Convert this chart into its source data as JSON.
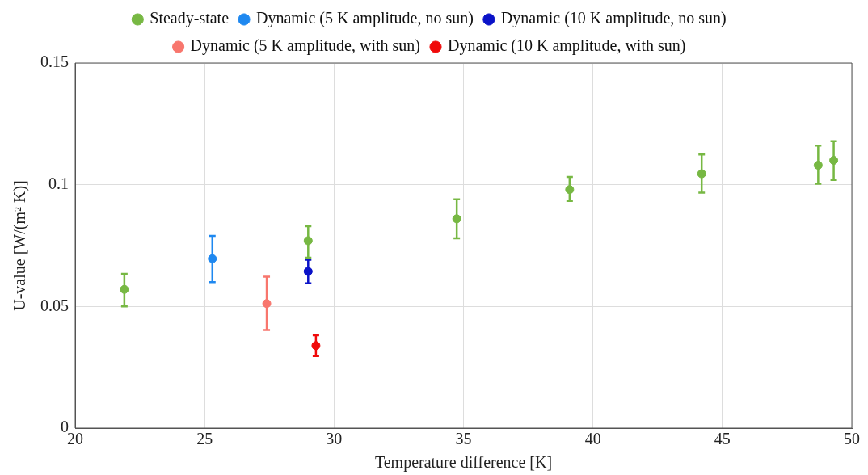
{
  "chart_data": {
    "type": "scatter",
    "xlabel": "Temperature difference [K]",
    "ylabel": "U-value [W/(m² K)]",
    "xlim": [
      20,
      50
    ],
    "xticks": [
      20,
      25,
      30,
      35,
      40,
      45,
      50
    ],
    "ylim": [
      0,
      0.15
    ],
    "yticks": [
      0,
      0.05,
      0.1,
      0.15
    ],
    "grid": true,
    "legend": "top",
    "marker": "circle",
    "series": [
      {
        "name": "Steady-state",
        "color": "#77b843",
        "x": [
          21.9,
          29.0,
          34.74,
          39.1,
          44.2,
          48.7,
          49.3
        ],
        "values": [
          0.057,
          0.077,
          0.086,
          0.098,
          0.1045,
          0.108,
          0.11
        ],
        "errors": [
          [
            0.05,
            0.0634
          ],
          [
            0.07,
            0.083
          ],
          [
            0.078,
            0.094
          ],
          [
            0.0933,
            0.1032
          ],
          [
            0.0967,
            0.1124
          ],
          [
            0.1004,
            0.1161
          ],
          [
            0.102,
            0.1179
          ]
        ]
      },
      {
        "name": "Dynamic (5 K amplitude, no sun)",
        "color": "#1e88f0",
        "x": [
          25.3
        ],
        "values": [
          0.0696
        ],
        "errors": [
          [
            0.06,
            0.079
          ]
        ]
      },
      {
        "name": "Dynamic (10 K amplitude, no sun)",
        "color": "#0a12c8",
        "x": [
          29.0
        ],
        "values": [
          0.0644
        ],
        "errors": [
          [
            0.0595,
            0.0692
          ]
        ]
      },
      {
        "name": "Dynamic (5 K amplitude, with sun)",
        "color": "#f8766d",
        "x": [
          27.4
        ],
        "values": [
          0.0512
        ],
        "errors": [
          [
            0.0403,
            0.0622
          ]
        ]
      },
      {
        "name": "Dynamic (10 K amplitude, with sun)",
        "color": "#f00a0a",
        "x": [
          29.3
        ],
        "values": [
          0.0339
        ],
        "errors": [
          [
            0.0296,
            0.0382
          ]
        ]
      }
    ]
  }
}
